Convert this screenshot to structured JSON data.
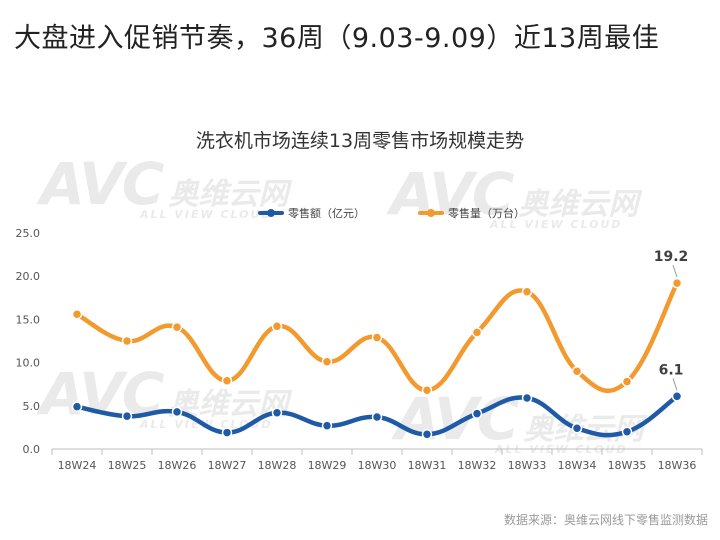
{
  "headline": "大盘进入促销节奏，36周（9.03-9.09）近13周最佳",
  "source": "数据来源：奥维云网线下零售监测数据",
  "watermark": {
    "logo": "AVC",
    "cn": "奥维云网",
    "en": "ALL VIEW CLOUD"
  },
  "chart_data": {
    "type": "line",
    "title": "洗衣机市场连续13周零售市场规模走势",
    "categories": [
      "18W24",
      "18W25",
      "18W26",
      "18W27",
      "18W28",
      "18W29",
      "18W30",
      "18W31",
      "18W32",
      "18W33",
      "18W34",
      "18W35",
      "18W36"
    ],
    "series": [
      {
        "name": "零售额（亿元）",
        "color": "#1f5aa6",
        "values": [
          4.9,
          3.8,
          4.3,
          1.9,
          4.2,
          2.7,
          3.7,
          1.7,
          4.1,
          5.9,
          2.4,
          2.0,
          6.1
        ]
      },
      {
        "name": "零售量（万台）",
        "color": "#f29a2e",
        "values": [
          15.6,
          12.5,
          14.1,
          7.9,
          14.2,
          10.1,
          12.9,
          6.8,
          13.5,
          18.2,
          9.0,
          7.8,
          19.2
        ]
      }
    ],
    "ylim": [
      0,
      25
    ],
    "yticks": [
      "0.0",
      "5.0",
      "10.0",
      "15.0",
      "20.0",
      "25.0"
    ],
    "data_labels": [
      {
        "series": 1,
        "index": 12,
        "text": "19.2"
      },
      {
        "series": 0,
        "index": 12,
        "text": "6.1"
      }
    ],
    "legend_position": "top",
    "grid": false
  }
}
